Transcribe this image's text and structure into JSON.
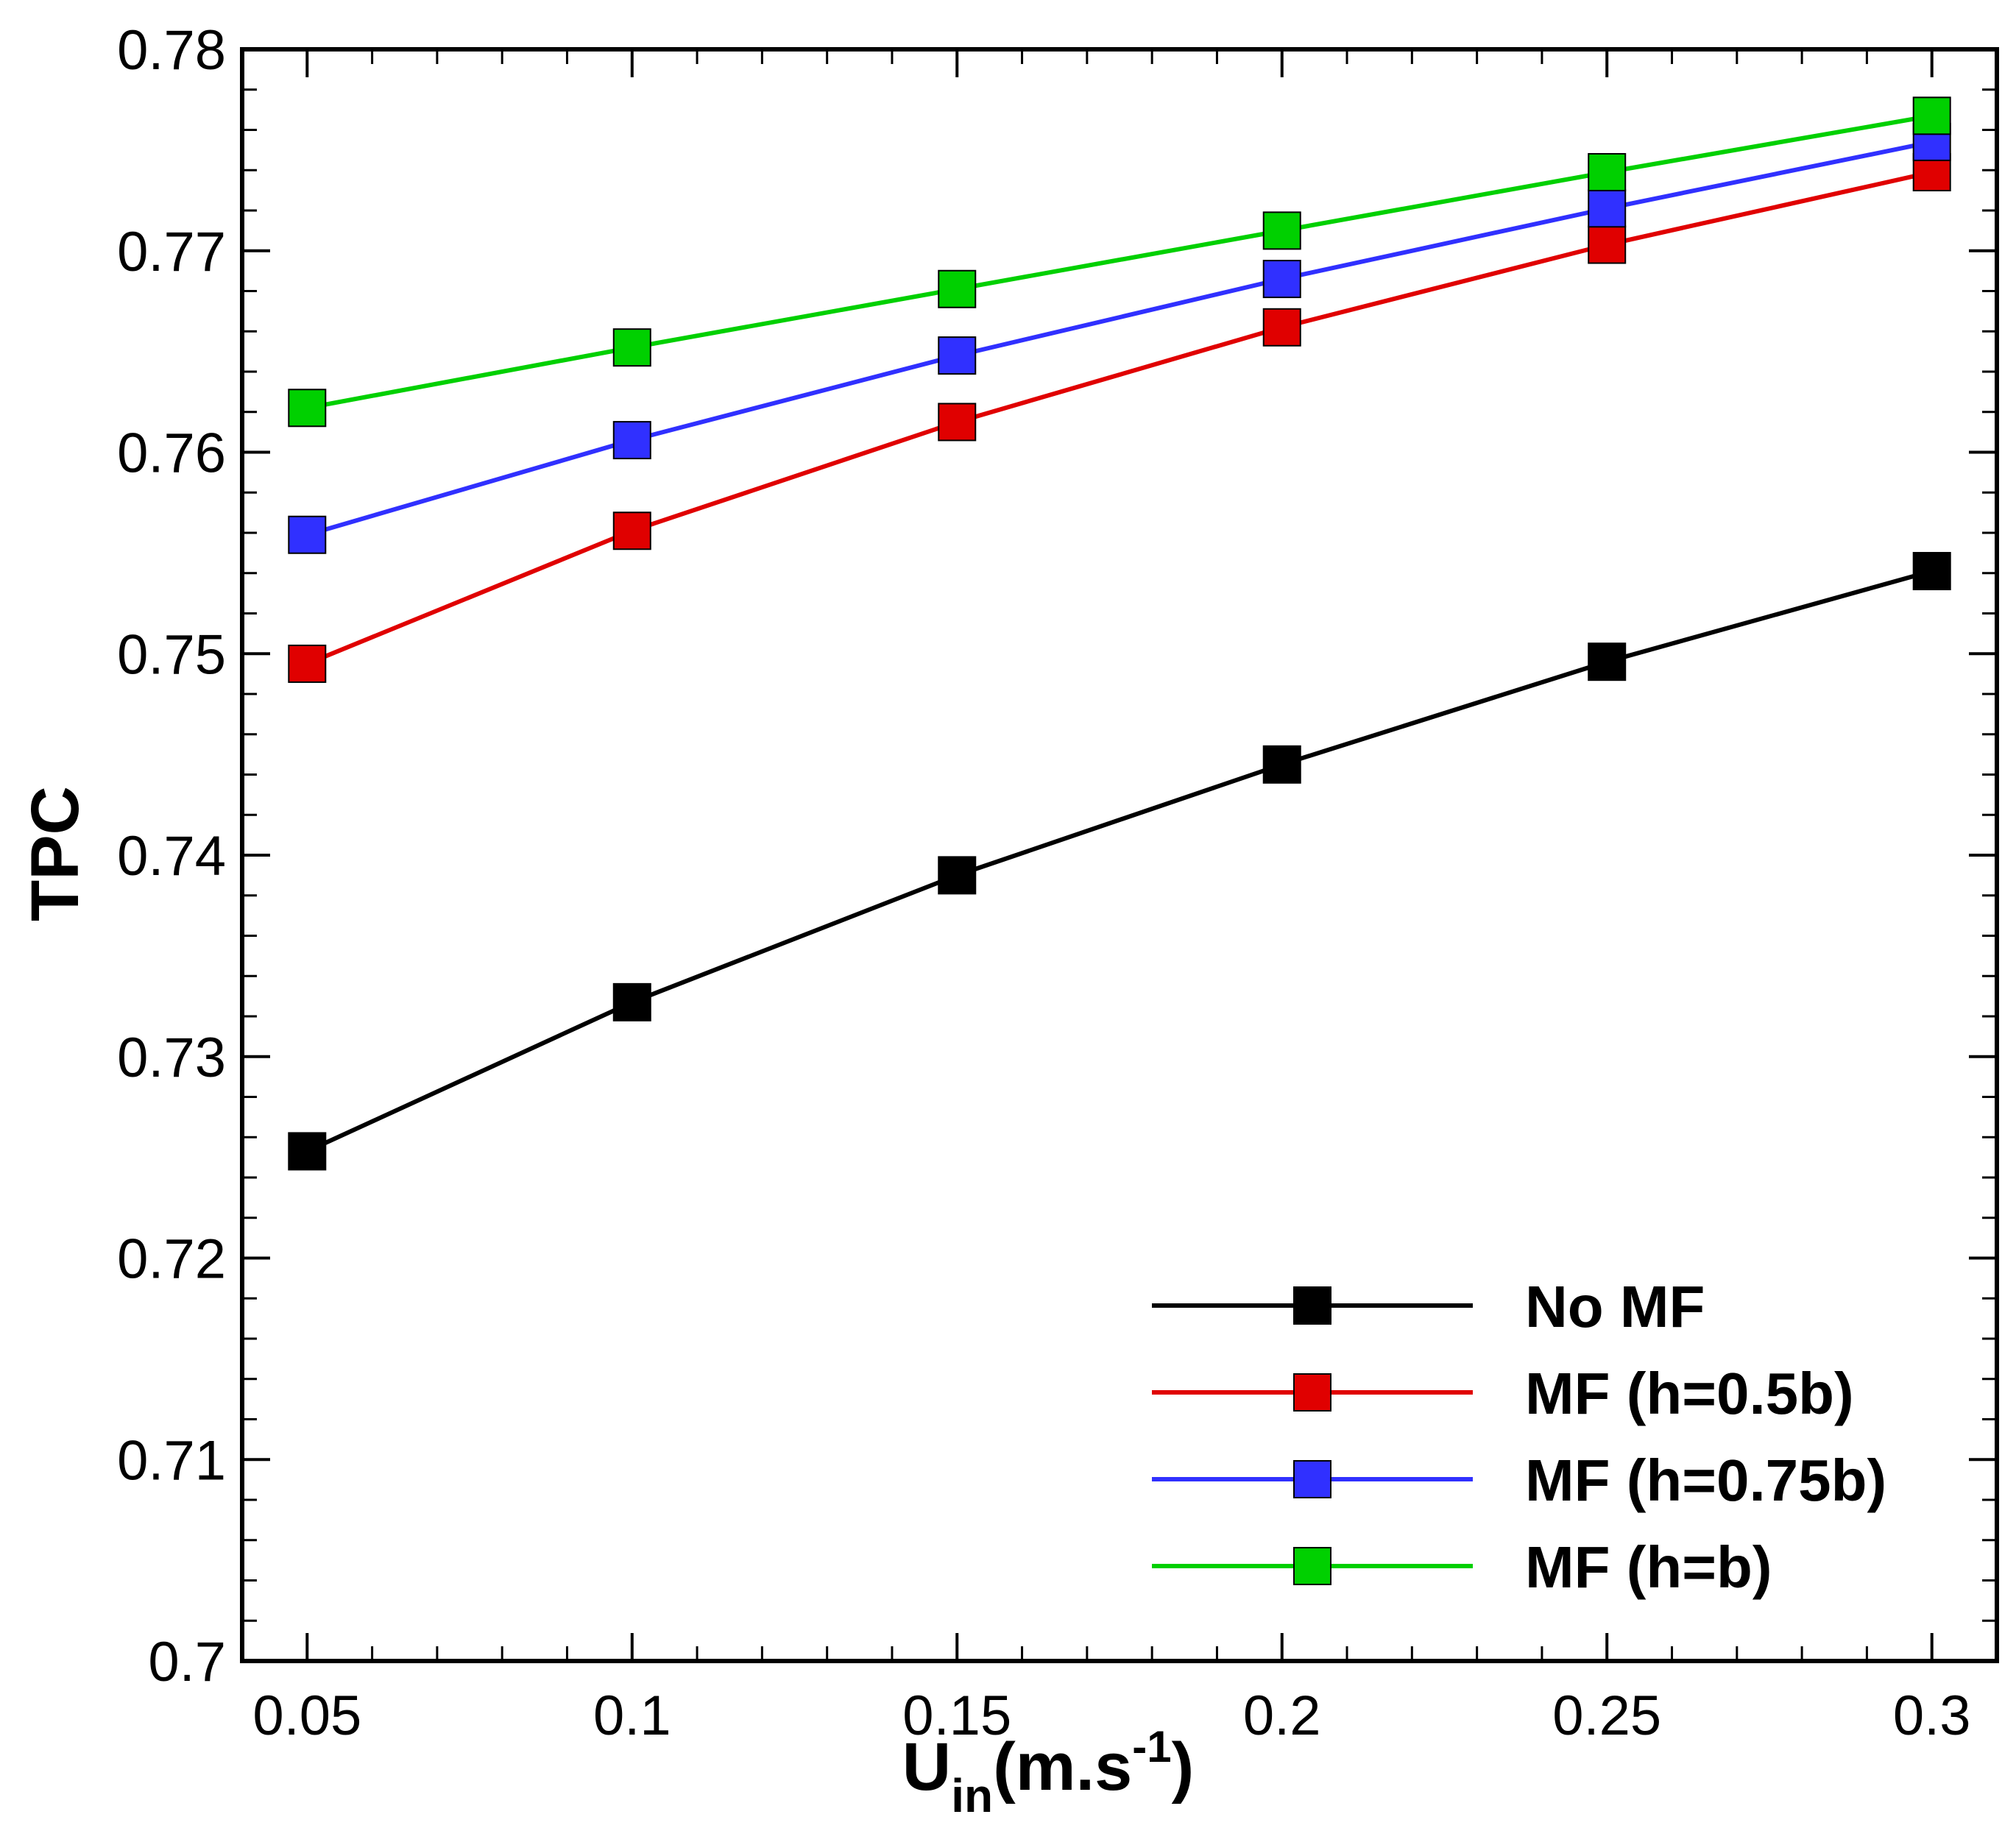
{
  "chart_data": {
    "type": "line",
    "title": "",
    "xlabel": "U",
    "xlabel_subscript": "in",
    "xlabel_units": "(m.s",
    "xlabel_units_exp": "-1",
    "xlabel_units_close": ")",
    "ylabel": "TPC",
    "x": [
      0.05,
      0.1,
      0.15,
      0.2,
      0.25,
      0.3
    ],
    "xlim": [
      0.04,
      0.31
    ],
    "ylim": [
      0.7,
      0.78
    ],
    "x_ticks": [
      "0.05",
      "0.1",
      "0.15",
      "0.2",
      "0.25",
      "0.3"
    ],
    "y_ticks": [
      "0.7",
      "0.71",
      "0.72",
      "0.73",
      "0.74",
      "0.75",
      "0.76",
      "0.77",
      "0.78"
    ],
    "grid": false,
    "legend_position": "bottom-right",
    "marker": "square",
    "series": [
      {
        "name": "No MF",
        "color": "#000000",
        "values": [
          0.7253,
          0.7327,
          0.739,
          0.7445,
          0.7496,
          0.7541
        ]
      },
      {
        "name": "MF (h=0.5b)",
        "color": "#e00000",
        "values": [
          0.7495,
          0.7561,
          0.7615,
          0.7662,
          0.7703,
          0.7739
        ]
      },
      {
        "name": "MF (h=0.75b)",
        "color": "#3030ff",
        "values": [
          0.7559,
          0.7606,
          0.7648,
          0.7686,
          0.7721,
          0.7754
        ]
      },
      {
        "name": "MF (h=b)",
        "color": "#00d000",
        "values": [
          0.7622,
          0.7652,
          0.7681,
          0.771,
          0.7739,
          0.7767
        ]
      }
    ]
  }
}
